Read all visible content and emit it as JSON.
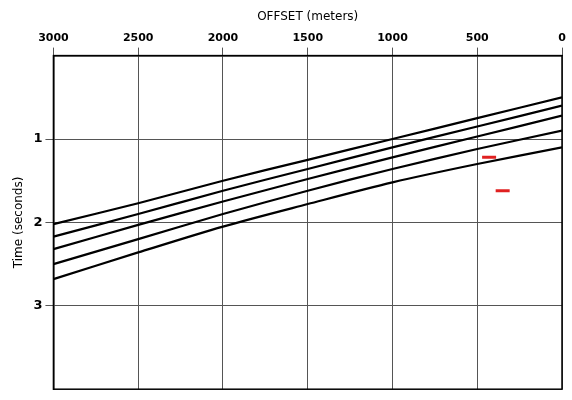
{
  "chart_data": {
    "type": "line",
    "x_label": "OFFSET (meters)",
    "y_label": "Time (seconds)",
    "x": [
      0,
      500,
      1000,
      1500,
      2000,
      2500,
      3000
    ],
    "series": [
      {
        "color": "#000000",
        "values": [
          0.5,
          0.75,
          1.0,
          1.25,
          1.5,
          1.77,
          2.02
        ]
      },
      {
        "color": "#000000",
        "values": [
          0.6,
          0.85,
          1.1,
          1.36,
          1.62,
          1.9,
          2.17
        ]
      },
      {
        "color": "#000000",
        "values": [
          0.72,
          0.97,
          1.22,
          1.48,
          1.75,
          2.03,
          2.32
        ]
      },
      {
        "color": "#000000",
        "values": [
          0.9,
          1.12,
          1.36,
          1.62,
          1.9,
          2.2,
          2.5
        ]
      },
      {
        "color": "#000000",
        "values": [
          1.1,
          1.3,
          1.52,
          1.78,
          2.05,
          2.36,
          2.68
        ]
      },
      {
        "type": "scatter",
        "color": "#e02020",
        "marker": "dash",
        "x": [
          430,
          350
        ],
        "values": [
          1.22,
          1.62
        ]
      }
    ],
    "xlim": [
      3000,
      0
    ],
    "ylim": [
      4,
      0
    ],
    "xticks": [
      3000,
      2500,
      2000,
      1500,
      1000,
      500,
      0
    ],
    "yticks": [
      1,
      2,
      3
    ],
    "grid": true
  }
}
